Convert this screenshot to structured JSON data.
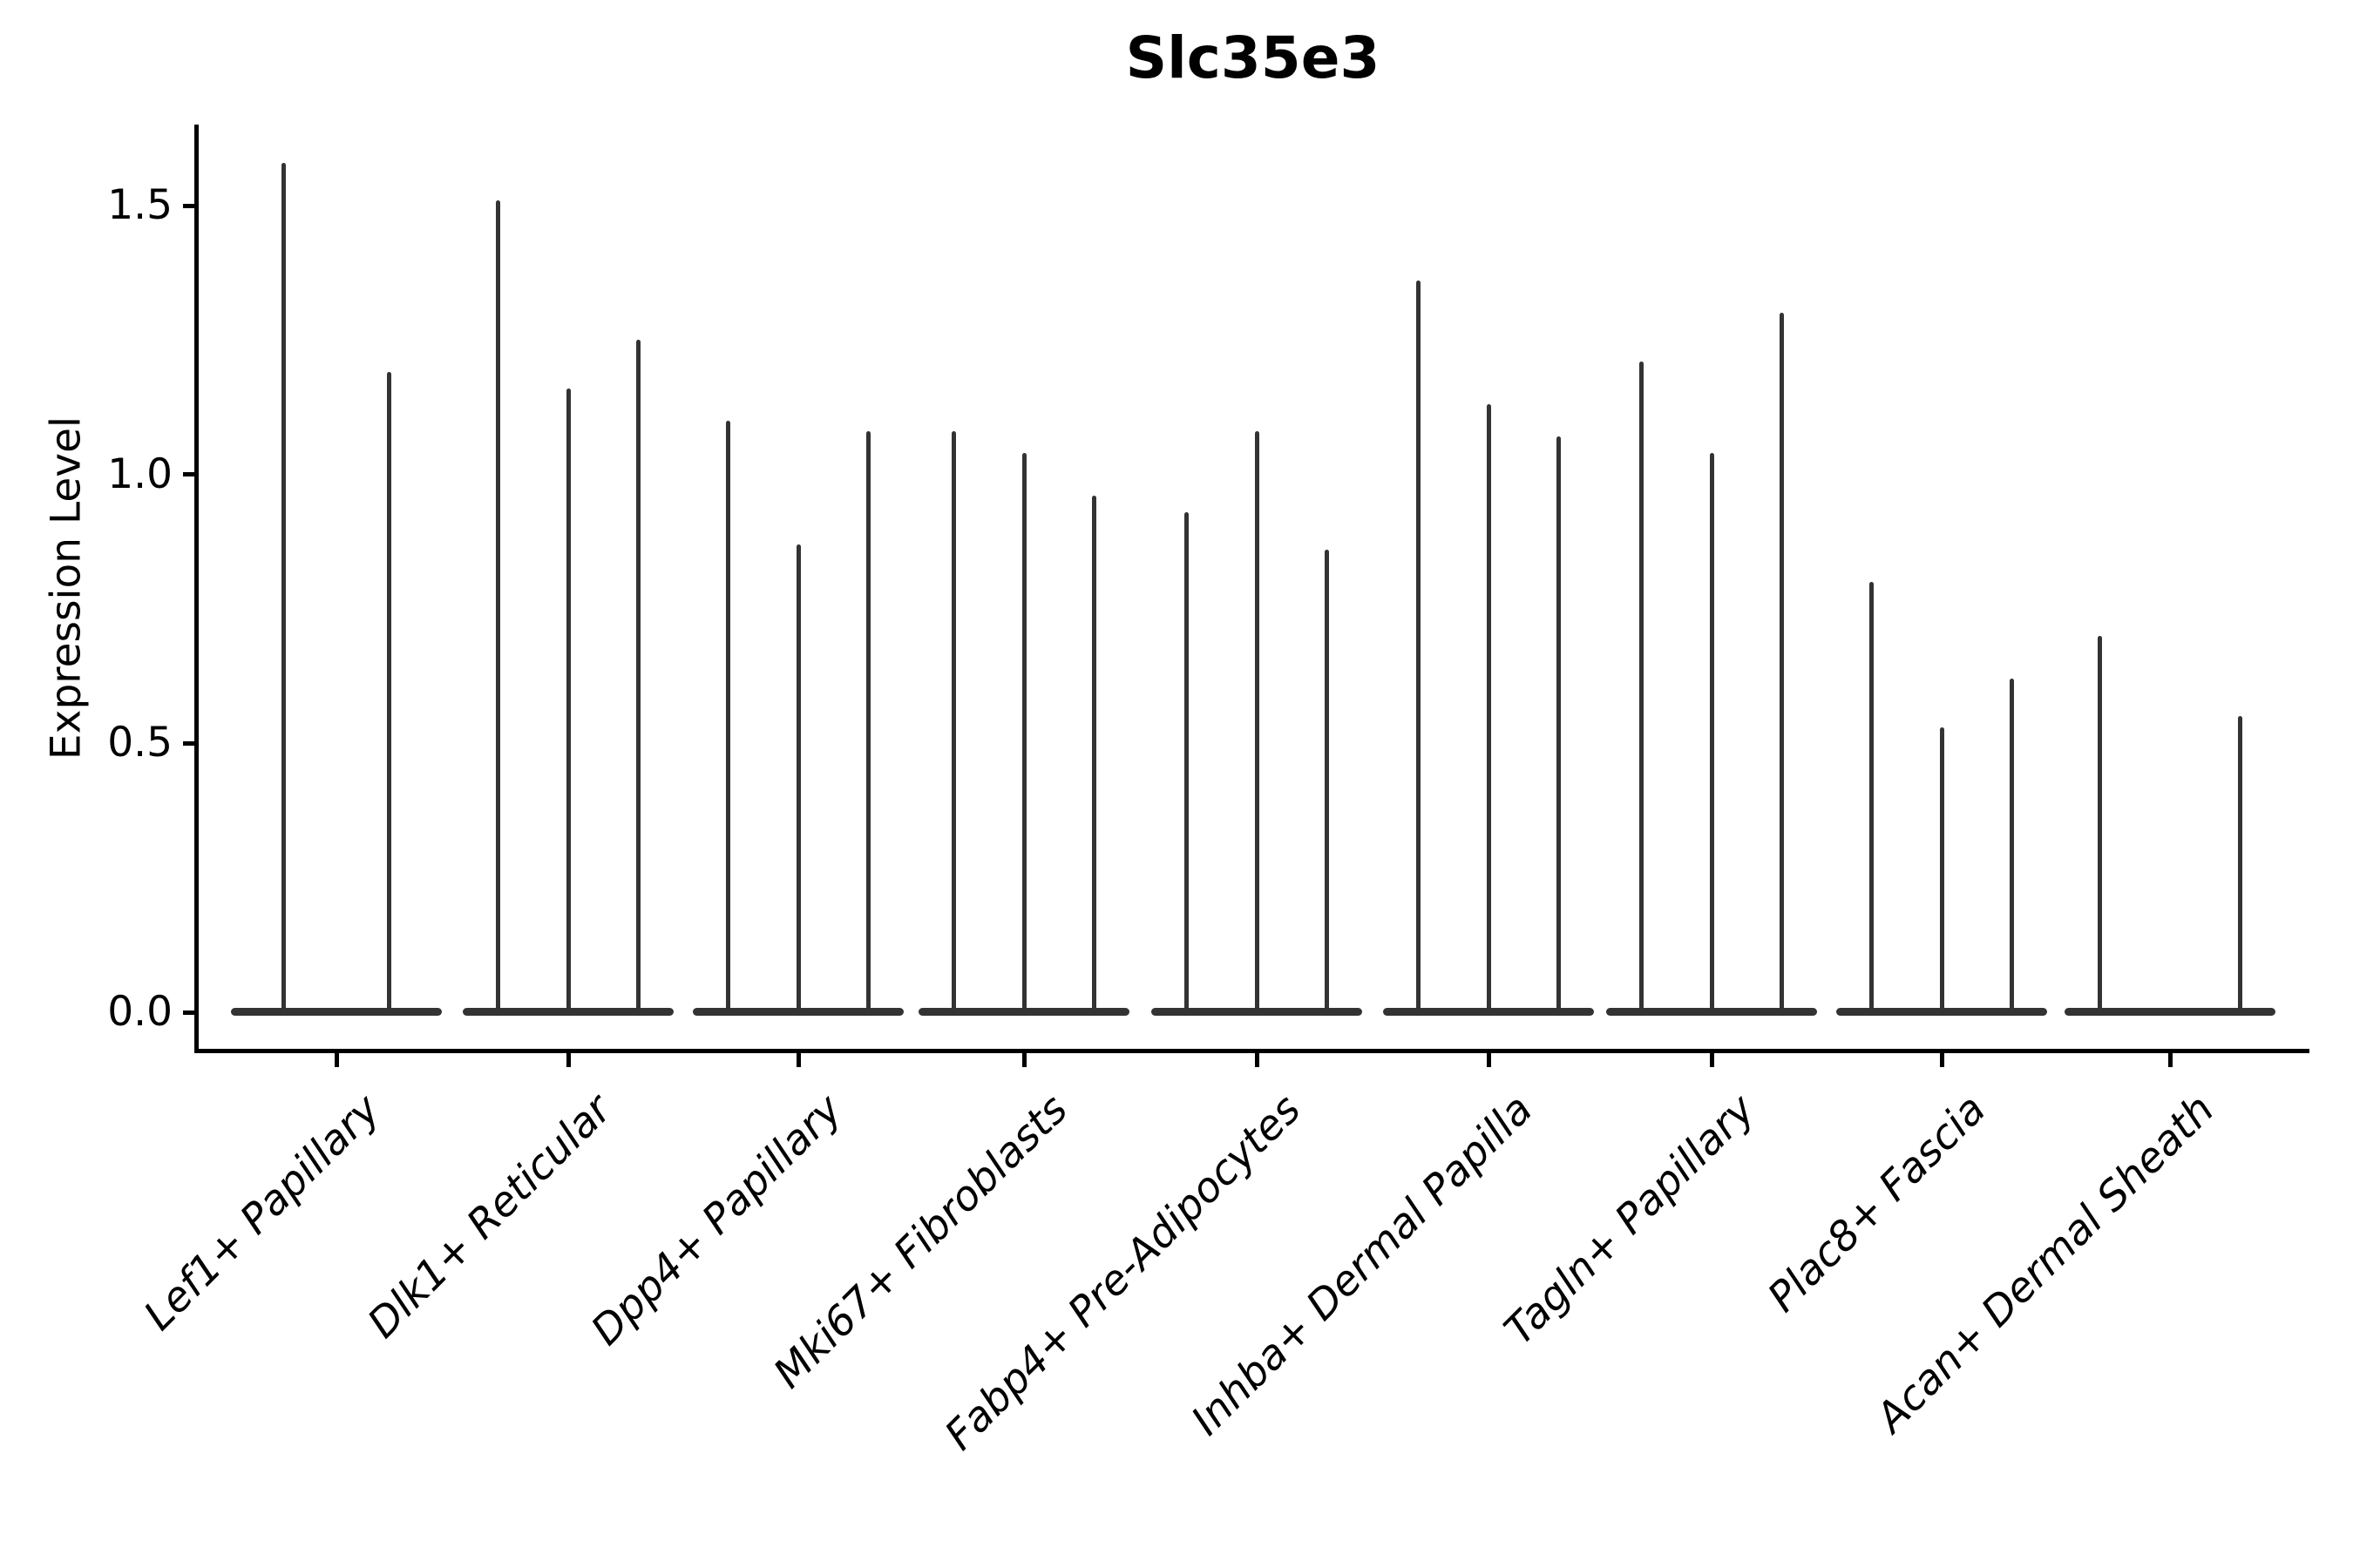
{
  "chart_data": {
    "type": "violin",
    "title": "Slc35e3",
    "ylabel": "Expression Level",
    "xlabel": "",
    "yticks": [
      "0.0",
      "0.5",
      "1.0",
      "1.5"
    ],
    "ytick_values": [
      0.0,
      0.5,
      1.0,
      1.5
    ],
    "ylim": [
      -0.07,
      1.65
    ],
    "grid": false,
    "legend": "none",
    "categories": [
      "Lef1+ Papillary",
      "Dlk1+ Reticular",
      "Dpp4+ Papillary",
      "Mki67+ Fibroblasts",
      "Fabp4+ Pre-Adipocytes",
      "Inhba+ Dermal Papilla",
      "Tagln+ Papillary",
      "Plac8+ Fascia",
      "Acan+ Dermal Sheath"
    ],
    "groups": [
      {
        "label": "Lef1+ Papillary",
        "n_slots": 2,
        "violins": [
          {
            "slot": 0,
            "max": 1.58
          },
          {
            "slot": 1,
            "max": 1.19
          }
        ]
      },
      {
        "label": "Dlk1+ Reticular",
        "n_slots": 3,
        "violins": [
          {
            "slot": 0,
            "max": 1.51
          },
          {
            "slot": 1,
            "max": 1.16
          },
          {
            "slot": 2,
            "max": 1.25
          }
        ]
      },
      {
        "label": "Dpp4+ Papillary",
        "n_slots": 3,
        "violins": [
          {
            "slot": 0,
            "max": 1.1
          },
          {
            "slot": 1,
            "max": 0.87
          },
          {
            "slot": 2,
            "max": 1.08
          }
        ]
      },
      {
        "label": "Mki67+ Fibroblasts",
        "n_slots": 3,
        "violins": [
          {
            "slot": 0,
            "max": 1.08
          },
          {
            "slot": 1,
            "max": 1.04
          },
          {
            "slot": 2,
            "max": 0.96
          }
        ]
      },
      {
        "label": "Fabp4+ Pre-Adipocytes",
        "n_slots": 3,
        "violins": [
          {
            "slot": 0,
            "max": 0.93
          },
          {
            "slot": 1,
            "max": 1.08
          },
          {
            "slot": 2,
            "max": 0.86
          }
        ]
      },
      {
        "label": "Inhba+ Dermal Papilla",
        "n_slots": 3,
        "violins": [
          {
            "slot": 0,
            "max": 1.36
          },
          {
            "slot": 1,
            "max": 1.13
          },
          {
            "slot": 2,
            "max": 1.07
          }
        ]
      },
      {
        "label": "Tagln+ Papillary",
        "n_slots": 3,
        "violins": [
          {
            "slot": 0,
            "max": 1.21
          },
          {
            "slot": 1,
            "max": 1.04
          },
          {
            "slot": 2,
            "max": 1.3
          }
        ]
      },
      {
        "label": "Plac8+ Fascia",
        "n_slots": 3,
        "violins": [
          {
            "slot": 0,
            "max": 0.8
          },
          {
            "slot": 1,
            "max": 0.53
          },
          {
            "slot": 2,
            "max": 0.62
          }
        ]
      },
      {
        "label": "Acan+ Dermal Sheath",
        "n_slots": 3,
        "violins": [
          {
            "slot": 0,
            "max": 0.7
          },
          {
            "slot": 2,
            "max": 0.55
          }
        ]
      }
    ]
  },
  "style": {
    "violin_color": "#333333",
    "axis_color": "#000000",
    "background_color": "#ffffff"
  }
}
